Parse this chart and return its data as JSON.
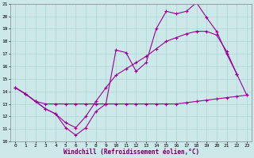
{
  "title": "",
  "xlabel": "Windchill (Refroidissement éolien,°C)",
  "background_color": "#cce8e8",
  "line_color": "#990099",
  "grid_color": "#aad4d4",
  "xlim": [
    -0.5,
    23.5
  ],
  "ylim": [
    10,
    21
  ],
  "xticks": [
    0,
    1,
    2,
    3,
    4,
    5,
    6,
    7,
    8,
    9,
    10,
    11,
    12,
    13,
    14,
    15,
    16,
    17,
    18,
    19,
    20,
    21,
    22,
    23
  ],
  "yticks": [
    10,
    11,
    12,
    13,
    14,
    15,
    16,
    17,
    18,
    19,
    20,
    21
  ],
  "series1_x": [
    0,
    1,
    2,
    3,
    4,
    5,
    6,
    7,
    8,
    9,
    10,
    11,
    12,
    13,
    14,
    15,
    16,
    17,
    18,
    19,
    20,
    21,
    22
  ],
  "series1_y": [
    14.3,
    13.8,
    13.2,
    12.6,
    12.2,
    11.1,
    10.5,
    11.1,
    12.4,
    13.0,
    17.3,
    17.1,
    15.6,
    16.3,
    19.0,
    20.4,
    20.2,
    20.4,
    21.1,
    19.9,
    18.8,
    17.0,
    15.4
  ],
  "series2_x": [
    0,
    1,
    2,
    3,
    4,
    5,
    6,
    7,
    8,
    9,
    10,
    11,
    12,
    13,
    14,
    15,
    16,
    17,
    18,
    19,
    20,
    21,
    22,
    23
  ],
  "series2_y": [
    14.3,
    13.8,
    13.2,
    13.0,
    13.0,
    13.0,
    13.0,
    13.0,
    13.0,
    13.0,
    13.0,
    13.0,
    13.0,
    13.0,
    13.0,
    13.0,
    13.0,
    13.1,
    13.2,
    13.3,
    13.4,
    13.5,
    13.6,
    13.7
  ],
  "series3_x": [
    0,
    1,
    2,
    3,
    4,
    5,
    6,
    7,
    8,
    9,
    10,
    11,
    12,
    13,
    14,
    15,
    16,
    17,
    18,
    19,
    20,
    21,
    22,
    23
  ],
  "series3_y": [
    14.3,
    13.8,
    13.2,
    12.6,
    12.2,
    11.5,
    11.1,
    12.0,
    13.2,
    14.3,
    15.3,
    15.8,
    16.3,
    16.8,
    17.4,
    18.0,
    18.3,
    18.6,
    18.8,
    18.8,
    18.5,
    17.2,
    15.4,
    13.7
  ]
}
